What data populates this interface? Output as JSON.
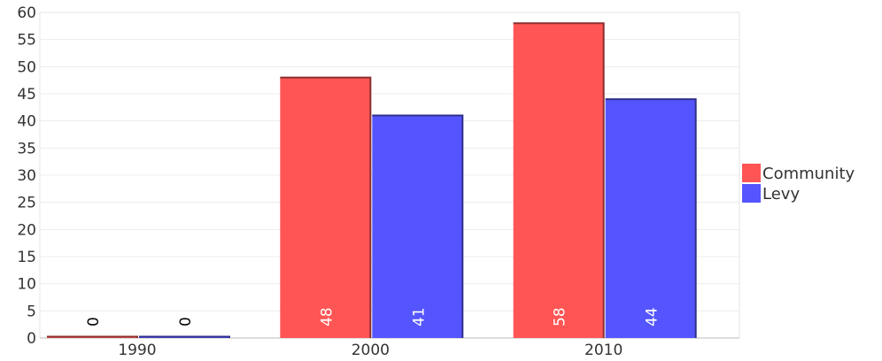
{
  "chart_data": {
    "type": "bar",
    "title": "",
    "categories": [
      "1990",
      "2000",
      "2010"
    ],
    "series": [
      {
        "name": "Community",
        "color": "#ff5555",
        "values": [
          0,
          48,
          58
        ]
      },
      {
        "name": "Levy",
        "color": "#5555ff",
        "values": [
          0,
          41,
          44
        ]
      }
    ],
    "ylim": [
      0,
      60
    ],
    "yticks": [
      "0",
      "5",
      "10",
      "15",
      "20",
      "25",
      "30",
      "35",
      "40",
      "45",
      "50",
      "55",
      "60"
    ],
    "grid": true,
    "legend_position": "right",
    "data_labels": true
  }
}
